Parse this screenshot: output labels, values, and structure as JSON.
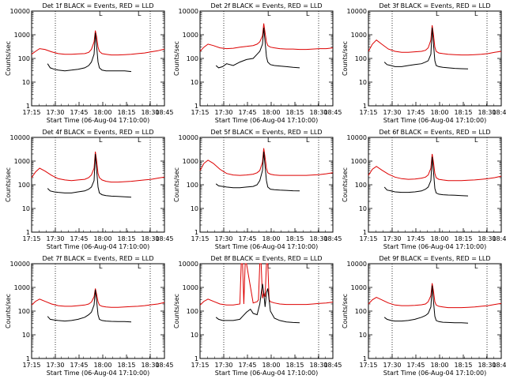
{
  "colors": {
    "events": "#000000",
    "lld": "#dd0000",
    "axis": "#000000"
  },
  "common": {
    "ylabel": "Counts/sec",
    "xlabel": "Start Time (06-Aug-04 17:10:00)",
    "xticks": [
      "17:15",
      "17:30",
      "17:45",
      "18:00",
      "18:15",
      "18:30",
      "18:45"
    ],
    "yticks": [
      "1",
      "10",
      "100",
      "1000",
      "10000"
    ],
    "corner_marks": [
      "L",
      "L"
    ]
  },
  "chart_data": [
    {
      "type": "line",
      "title": "Det 1f BLACK = Events, RED = LLD",
      "xlim": [
        0,
        100
      ],
      "ylim": [
        1,
        10000
      ],
      "yscale": "log",
      "series": [
        {
          "name": "LLD",
          "x": [
            0,
            3,
            6,
            10,
            15,
            20,
            25,
            30,
            35,
            40,
            43,
            45,
            47,
            48,
            49,
            50,
            51,
            53,
            56,
            60,
            65,
            70,
            75,
            80,
            85,
            90,
            95,
            100
          ],
          "y": [
            150,
            200,
            260,
            240,
            190,
            160,
            150,
            150,
            155,
            160,
            180,
            240,
            500,
            1500,
            800,
            300,
            200,
            160,
            150,
            140,
            140,
            145,
            150,
            160,
            170,
            190,
            210,
            250
          ]
        },
        {
          "name": "Events",
          "x": [
            12,
            14,
            17,
            20,
            25,
            30,
            35,
            40,
            43,
            45,
            47,
            48,
            49,
            50,
            51,
            53,
            56,
            60,
            65,
            70,
            75
          ],
          "y": [
            60,
            40,
            35,
            32,
            30,
            32,
            35,
            40,
            50,
            70,
            150,
            1200,
            300,
            70,
            40,
            32,
            30,
            30,
            30,
            30,
            28
          ]
        }
      ]
    },
    {
      "type": "line",
      "title": "Det 2f BLACK = Events, RED = LLD",
      "xlim": [
        0,
        100
      ],
      "ylim": [
        1,
        10000
      ],
      "yscale": "log",
      "series": [
        {
          "name": "LLD",
          "x": [
            0,
            3,
            6,
            10,
            15,
            20,
            25,
            30,
            35,
            40,
            43,
            45,
            47,
            48,
            49,
            50,
            51,
            53,
            56,
            60,
            65,
            70,
            75,
            80,
            85,
            90,
            95,
            100
          ],
          "y": [
            200,
            300,
            400,
            350,
            280,
            260,
            270,
            300,
            320,
            350,
            400,
            500,
            900,
            3000,
            1200,
            500,
            350,
            300,
            280,
            260,
            250,
            250,
            240,
            240,
            250,
            260,
            260,
            280
          ]
        },
        {
          "name": "Events",
          "x": [
            12,
            14,
            17,
            20,
            25,
            30,
            35,
            40,
            43,
            45,
            47,
            48,
            49,
            50,
            51,
            53,
            56,
            60,
            65,
            70,
            75
          ],
          "y": [
            50,
            40,
            45,
            60,
            50,
            70,
            90,
            100,
            150,
            200,
            400,
            2000,
            500,
            120,
            70,
            55,
            50,
            48,
            45,
            42,
            40
          ]
        }
      ]
    },
    {
      "type": "line",
      "title": "Det 3f BLACK = Events, RED = LLD",
      "xlim": [
        0,
        100
      ],
      "ylim": [
        1,
        10000
      ],
      "yscale": "log",
      "series": [
        {
          "name": "LLD",
          "x": [
            0,
            3,
            6,
            10,
            15,
            20,
            25,
            30,
            35,
            40,
            43,
            45,
            47,
            48,
            49,
            50,
            51,
            53,
            56,
            60,
            65,
            70,
            75,
            80,
            85,
            90,
            95,
            100
          ],
          "y": [
            200,
            400,
            600,
            400,
            250,
            200,
            180,
            180,
            190,
            200,
            220,
            280,
            600,
            2500,
            1000,
            300,
            200,
            170,
            160,
            150,
            145,
            140,
            140,
            145,
            150,
            160,
            180,
            200
          ]
        },
        {
          "name": "Events",
          "x": [
            12,
            14,
            17,
            20,
            25,
            30,
            35,
            40,
            43,
            45,
            47,
            48,
            49,
            50,
            51,
            53,
            56,
            60,
            65,
            70,
            75
          ],
          "y": [
            70,
            55,
            50,
            45,
            45,
            50,
            55,
            60,
            70,
            80,
            150,
            2000,
            400,
            80,
            50,
            45,
            42,
            40,
            38,
            37,
            36
          ]
        }
      ]
    },
    {
      "type": "line",
      "title": "Det 4f BLACK = Events, RED = LLD",
      "xlim": [
        0,
        100
      ],
      "ylim": [
        1,
        10000
      ],
      "yscale": "log",
      "series": [
        {
          "name": "LLD",
          "x": [
            0,
            3,
            6,
            10,
            15,
            20,
            25,
            30,
            35,
            40,
            43,
            45,
            47,
            48,
            49,
            50,
            51,
            53,
            56,
            60,
            65,
            70,
            75,
            80,
            85,
            90,
            95,
            100
          ],
          "y": [
            200,
            350,
            500,
            380,
            250,
            180,
            160,
            150,
            160,
            170,
            200,
            260,
            500,
            2500,
            1000,
            300,
            200,
            160,
            140,
            130,
            130,
            135,
            140,
            150,
            160,
            170,
            190,
            210
          ]
        },
        {
          "name": "Events",
          "x": [
            12,
            14,
            17,
            20,
            25,
            30,
            35,
            40,
            43,
            45,
            47,
            48,
            49,
            50,
            51,
            53,
            56,
            60,
            65,
            70,
            75
          ],
          "y": [
            70,
            55,
            50,
            48,
            45,
            45,
            50,
            55,
            65,
            80,
            150,
            2000,
            400,
            80,
            45,
            38,
            35,
            33,
            32,
            31,
            30
          ]
        }
      ]
    },
    {
      "type": "line",
      "title": "Det 5f BLACK = Events, RED = LLD",
      "xlim": [
        0,
        100
      ],
      "ylim": [
        1,
        10000
      ],
      "yscale": "log",
      "series": [
        {
          "name": "LLD",
          "x": [
            0,
            3,
            6,
            10,
            15,
            20,
            25,
            30,
            35,
            40,
            43,
            45,
            47,
            48,
            49,
            50,
            51,
            53,
            56,
            60,
            65,
            70,
            75,
            80,
            85,
            90,
            95,
            100
          ],
          "y": [
            400,
            800,
            1100,
            800,
            450,
            300,
            260,
            250,
            260,
            280,
            320,
            400,
            900,
            3500,
            1400,
            500,
            320,
            280,
            260,
            250,
            250,
            250,
            250,
            250,
            260,
            270,
            290,
            320
          ]
        },
        {
          "name": "Events",
          "x": [
            12,
            14,
            17,
            20,
            25,
            30,
            35,
            40,
            43,
            45,
            47,
            48,
            49,
            50,
            51,
            53,
            56,
            60,
            65,
            70,
            75
          ],
          "y": [
            110,
            90,
            85,
            80,
            75,
            75,
            80,
            85,
            100,
            150,
            400,
            2500,
            600,
            150,
            80,
            65,
            62,
            60,
            58,
            56,
            55
          ]
        }
      ]
    },
    {
      "type": "line",
      "title": "Det 6f BLACK = Events, RED = LLD",
      "xlim": [
        0,
        100
      ],
      "ylim": [
        1,
        10000
      ],
      "yscale": "log",
      "series": [
        {
          "name": "LLD",
          "x": [
            0,
            3,
            6,
            10,
            15,
            20,
            25,
            30,
            35,
            40,
            43,
            45,
            47,
            48,
            49,
            50,
            51,
            53,
            56,
            60,
            65,
            70,
            75,
            80,
            85,
            90,
            95,
            100
          ],
          "y": [
            250,
            450,
            600,
            420,
            280,
            210,
            180,
            170,
            175,
            190,
            210,
            260,
            500,
            2000,
            900,
            300,
            200,
            170,
            160,
            150,
            150,
            150,
            155,
            160,
            170,
            180,
            200,
            230
          ]
        },
        {
          "name": "Events",
          "x": [
            12,
            14,
            17,
            20,
            25,
            30,
            35,
            40,
            43,
            45,
            47,
            48,
            49,
            50,
            51,
            53,
            56,
            60,
            65,
            70,
            75
          ],
          "y": [
            80,
            60,
            55,
            50,
            48,
            48,
            50,
            55,
            65,
            80,
            150,
            1500,
            350,
            70,
            45,
            40,
            38,
            37,
            36,
            35,
            34
          ]
        }
      ]
    },
    {
      "type": "line",
      "title": "Det 7f BLACK = Events, RED = LLD",
      "xlim": [
        0,
        100
      ],
      "ylim": [
        1,
        10000
      ],
      "yscale": "log",
      "series": [
        {
          "name": "LLD",
          "x": [
            0,
            3,
            6,
            10,
            15,
            20,
            25,
            30,
            35,
            40,
            43,
            45,
            47,
            48,
            49,
            50,
            51,
            53,
            56,
            60,
            65,
            70,
            75,
            80,
            85,
            90,
            95,
            100
          ],
          "y": [
            180,
            260,
            320,
            260,
            200,
            170,
            160,
            160,
            170,
            180,
            200,
            240,
            400,
            900,
            500,
            250,
            180,
            160,
            150,
            145,
            145,
            150,
            155,
            160,
            170,
            185,
            200,
            230
          ]
        },
        {
          "name": "Events",
          "x": [
            12,
            14,
            17,
            20,
            25,
            30,
            35,
            40,
            43,
            45,
            47,
            48,
            49,
            50,
            51,
            53,
            56,
            60,
            65,
            70,
            75
          ],
          "y": [
            60,
            45,
            42,
            40,
            38,
            40,
            45,
            55,
            70,
            90,
            180,
            800,
            250,
            70,
            45,
            40,
            38,
            37,
            36,
            36,
            35
          ]
        }
      ]
    },
    {
      "type": "line",
      "title": "Det 8f BLACK = Events, RED = LLD",
      "xlim": [
        0,
        100
      ],
      "ylim": [
        1,
        10000
      ],
      "yscale": "log",
      "series": [
        {
          "name": "LLD",
          "x": [
            0,
            3,
            6,
            10,
            15,
            20,
            25,
            30,
            31,
            32,
            33,
            34,
            35,
            40,
            43,
            44,
            45,
            46,
            47,
            48,
            49,
            50,
            51,
            52,
            53,
            56,
            60,
            65,
            70,
            75,
            80,
            85,
            90,
            95,
            100
          ],
          "y": [
            180,
            260,
            320,
            260,
            200,
            180,
            180,
            200,
            10000,
            10000,
            200,
            10000,
            10000,
            220,
            250,
            300,
            10000,
            10000,
            350,
            600,
            400,
            10000,
            10000,
            300,
            250,
            220,
            200,
            190,
            190,
            190,
            190,
            200,
            210,
            220,
            240
          ]
        },
        {
          "name": "Events",
          "x": [
            12,
            14,
            17,
            20,
            25,
            30,
            32,
            35,
            38,
            40,
            43,
            45,
            47,
            48,
            49,
            50,
            51,
            53,
            56,
            60,
            65,
            70,
            75
          ],
          "y": [
            55,
            45,
            40,
            40,
            40,
            45,
            60,
            90,
            120,
            80,
            70,
            200,
            1400,
            600,
            150,
            600,
            900,
            100,
            50,
            40,
            35,
            33,
            32
          ]
        }
      ]
    },
    {
      "type": "line",
      "title": "Det 9f BLACK = Events, RED = LLD",
      "xlim": [
        0,
        100
      ],
      "ylim": [
        1,
        10000
      ],
      "yscale": "log",
      "series": [
        {
          "name": "LLD",
          "x": [
            0,
            3,
            6,
            10,
            15,
            20,
            25,
            30,
            35,
            40,
            43,
            45,
            47,
            48,
            49,
            50,
            51,
            53,
            56,
            60,
            65,
            70,
            75,
            80,
            85,
            90,
            95,
            100
          ],
          "y": [
            200,
            300,
            380,
            300,
            220,
            180,
            170,
            170,
            175,
            185,
            200,
            250,
            450,
            1500,
            700,
            250,
            180,
            160,
            150,
            140,
            140,
            140,
            145,
            150,
            160,
            170,
            190,
            210
          ]
        },
        {
          "name": "Events",
          "x": [
            12,
            14,
            17,
            20,
            25,
            30,
            35,
            40,
            43,
            45,
            47,
            48,
            49,
            50,
            51,
            53,
            56,
            60,
            65,
            70,
            75
          ],
          "y": [
            55,
            45,
            40,
            38,
            38,
            40,
            45,
            55,
            65,
            80,
            150,
            1200,
            250,
            60,
            40,
            36,
            34,
            33,
            32,
            32,
            31
          ]
        }
      ]
    }
  ]
}
